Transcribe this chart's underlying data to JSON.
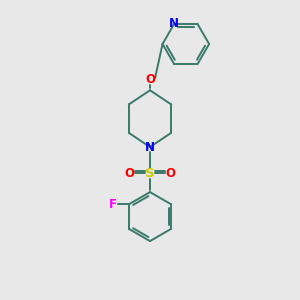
{
  "bg_color": "#e8e8e8",
  "bond_color": "#3a7a6a",
  "N_color": "#0000ff",
  "O_color": "#ff0000",
  "S_color": "#cccc00",
  "F_color": "#ff00ff",
  "figsize": [
    3.0,
    3.0
  ],
  "dpi": 100,
  "xlim": [
    0,
    10
  ],
  "ylim": [
    0,
    10
  ]
}
